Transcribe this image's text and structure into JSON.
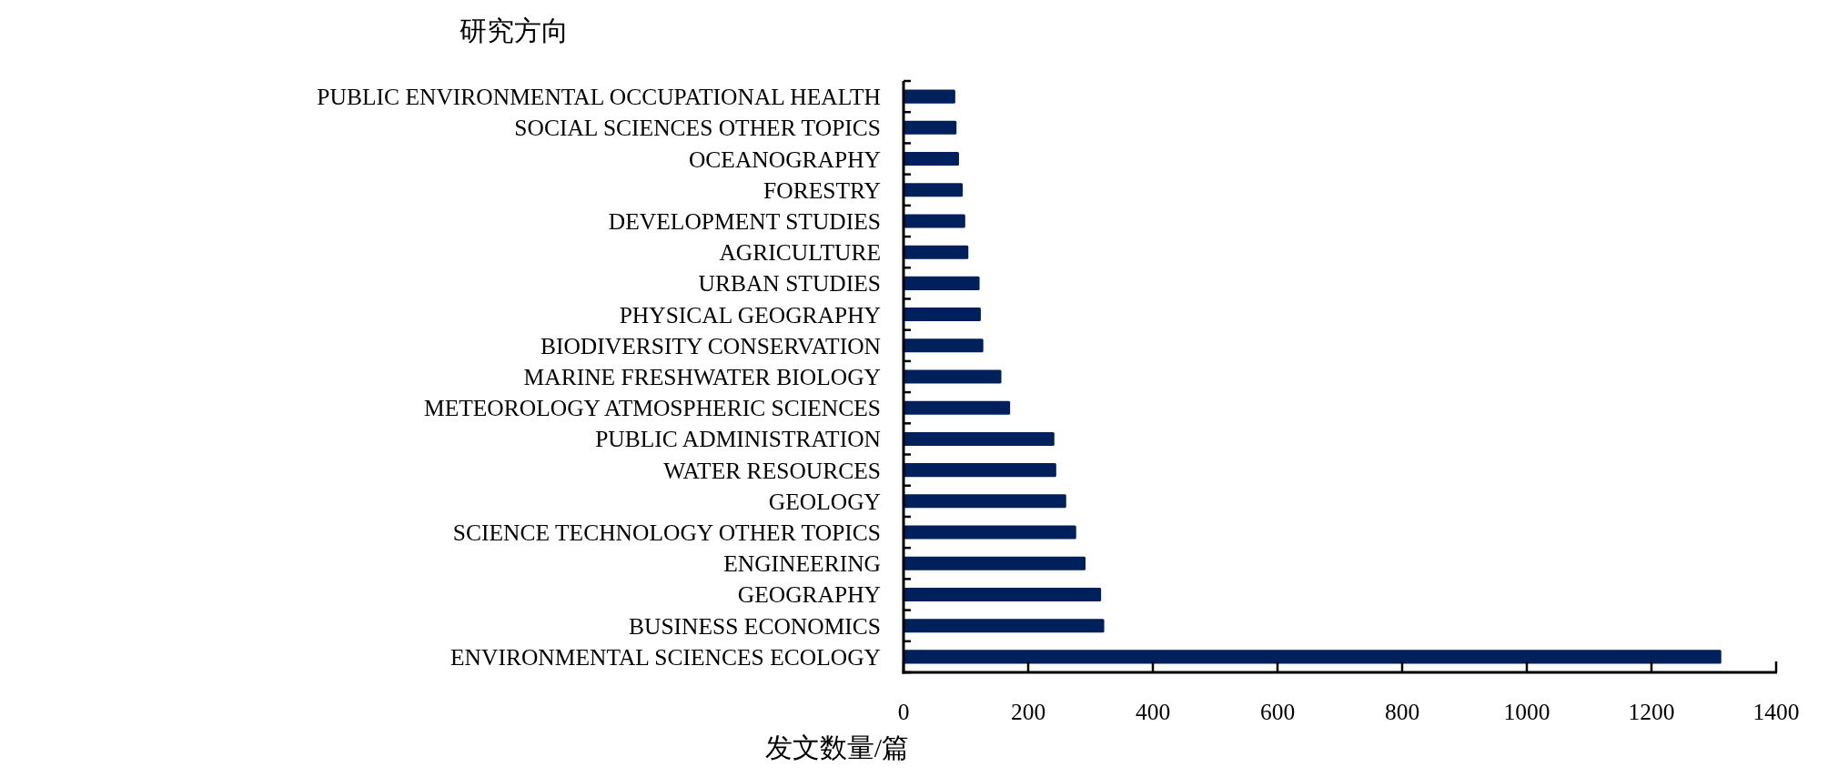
{
  "chart_data": {
    "type": "bar",
    "orientation": "horizontal",
    "ylabel": "研究方向",
    "xlabel": "发文数量/篇",
    "categories": [
      "PUBLIC ENVIRONMENTAL OCCUPATIONAL HEALTH",
      "SOCIAL SCIENCES OTHER TOPICS",
      "OCEANOGRAPHY",
      "FORESTRY",
      "DEVELOPMENT STUDIES",
      "AGRICULTURE",
      "URBAN STUDIES",
      "PHYSICAL GEOGRAPHY",
      "BIODIVERSITY CONSERVATION",
      "MARINE FRESHWATER BIOLOGY",
      "METEOROLOGY ATMOSPHERIC SCIENCES",
      "PUBLIC ADMINISTRATION",
      "WATER RESOURCES",
      "GEOLOGY",
      "SCIENCE TECHNOLOGY OTHER TOPICS",
      "ENGINEERING",
      "GEOGRAPHY",
      "BUSINESS ECONOMICS",
      "ENVIRONMENTAL SCIENCES ECOLOGY"
    ],
    "values": [
      83,
      85,
      89,
      95,
      99,
      104,
      122,
      124,
      128,
      157,
      171,
      242,
      245,
      261,
      277,
      292,
      317,
      322,
      1312
    ],
    "color": "#00205b",
    "xlim": [
      0,
      1400
    ],
    "xticks": [
      0,
      200,
      400,
      600,
      800,
      1000,
      1200,
      1400
    ]
  }
}
